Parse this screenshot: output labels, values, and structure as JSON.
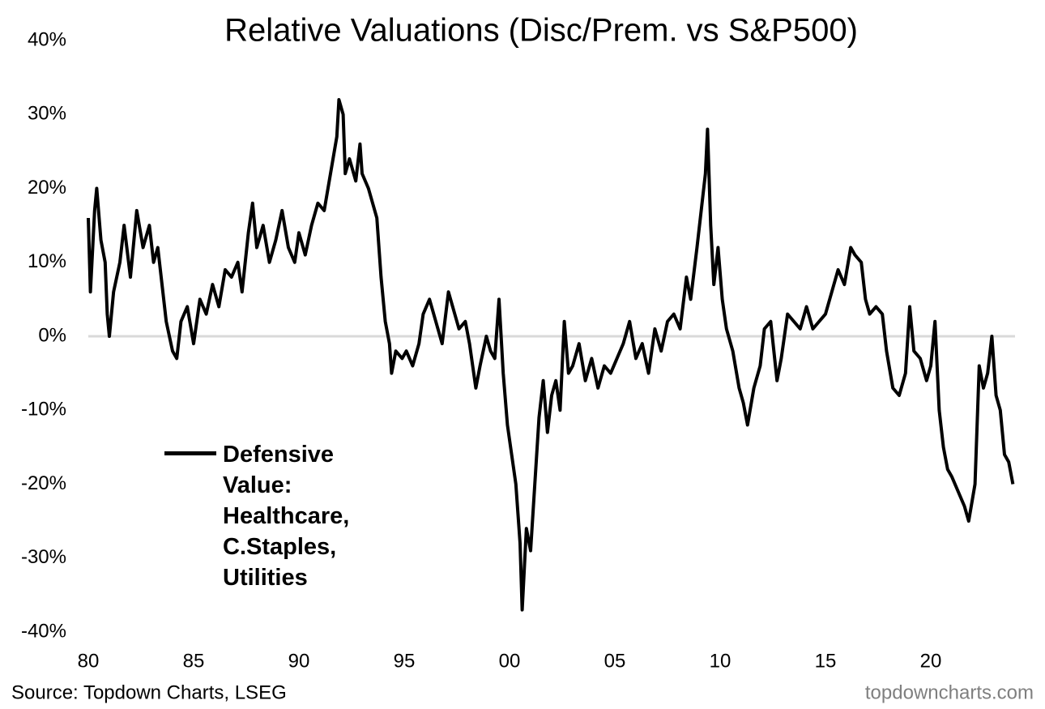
{
  "chart_data": {
    "type": "line",
    "title": "Relative Valuations (Disc/Prem. vs S&P500)",
    "source": "Source: Topdown Charts, LSEG",
    "watermark": "topdowncharts.com",
    "legend_position": "lower-left",
    "xlim": [
      1980,
      2024
    ],
    "xticks": [
      {
        "value": 1980,
        "label": "80"
      },
      {
        "value": 1985,
        "label": "85"
      },
      {
        "value": 1990,
        "label": "90"
      },
      {
        "value": 1995,
        "label": "95"
      },
      {
        "value": 2000,
        "label": "00"
      },
      {
        "value": 2005,
        "label": "05"
      },
      {
        "value": 2010,
        "label": "10"
      },
      {
        "value": 2015,
        "label": "15"
      },
      {
        "value": 2020,
        "label": "20"
      }
    ],
    "ylim": [
      -40,
      40
    ],
    "yticks": [
      {
        "value": -40,
        "label": "-40%"
      },
      {
        "value": -30,
        "label": "-30%"
      },
      {
        "value": -20,
        "label": "-20%"
      },
      {
        "value": -10,
        "label": "-10%"
      },
      {
        "value": 0,
        "label": "0%"
      },
      {
        "value": 10,
        "label": "10%"
      },
      {
        "value": 20,
        "label": "20%"
      },
      {
        "value": 30,
        "label": "30%"
      },
      {
        "value": 40,
        "label": "40%"
      }
    ],
    "x": [
      1980.0,
      1980.1,
      1980.3,
      1980.4,
      1980.6,
      1980.8,
      1980.9,
      1981.0,
      1981.2,
      1981.5,
      1981.7,
      1982.0,
      1982.3,
      1982.6,
      1982.9,
      1983.1,
      1983.3,
      1983.5,
      1983.7,
      1984.0,
      1984.2,
      1984.4,
      1984.7,
      1985.0,
      1985.3,
      1985.6,
      1985.9,
      1986.2,
      1986.5,
      1986.8,
      1987.1,
      1987.3,
      1987.6,
      1987.8,
      1988.0,
      1988.3,
      1988.6,
      1988.9,
      1989.2,
      1989.5,
      1989.8,
      1990.0,
      1990.3,
      1990.6,
      1990.9,
      1991.2,
      1991.5,
      1991.8,
      1991.9,
      1992.1,
      1992.2,
      1992.4,
      1992.7,
      1992.9,
      1993.0,
      1993.3,
      1993.5,
      1993.7,
      1993.9,
      1994.1,
      1994.3,
      1994.4,
      1994.6,
      1994.9,
      1995.1,
      1995.4,
      1995.7,
      1995.9,
      1996.2,
      1996.5,
      1996.8,
      1997.1,
      1997.4,
      1997.6,
      1997.9,
      1998.1,
      1998.4,
      1998.6,
      1998.9,
      1999.1,
      1999.3,
      1999.5,
      1999.7,
      1999.9,
      2000.1,
      2000.3,
      2000.5,
      2000.6,
      2000.8,
      2001.0,
      2001.2,
      2001.4,
      2001.6,
      2001.8,
      2002.0,
      2002.2,
      2002.4,
      2002.6,
      2002.8,
      2003.0,
      2003.3,
      2003.6,
      2003.9,
      2004.2,
      2004.5,
      2004.8,
      2005.1,
      2005.4,
      2005.7,
      2006.0,
      2006.3,
      2006.6,
      2006.9,
      2007.2,
      2007.5,
      2007.8,
      2008.1,
      2008.4,
      2008.6,
      2008.9,
      2009.1,
      2009.3,
      2009.4,
      2009.55,
      2009.7,
      2009.9,
      2010.1,
      2010.3,
      2010.6,
      2010.9,
      2011.1,
      2011.3,
      2011.6,
      2011.9,
      2012.1,
      2012.4,
      2012.7,
      2012.9,
      2013.2,
      2013.5,
      2013.8,
      2014.1,
      2014.4,
      2014.7,
      2015.0,
      2015.3,
      2015.6,
      2015.9,
      2016.2,
      2016.4,
      2016.7,
      2016.9,
      2017.1,
      2017.4,
      2017.7,
      2017.9,
      2018.2,
      2018.5,
      2018.8,
      2019.0,
      2019.2,
      2019.5,
      2019.8,
      2020.0,
      2020.2,
      2020.4,
      2020.6,
      2020.8,
      2021.0,
      2021.3,
      2021.6,
      2021.8,
      2022.1,
      2022.3,
      2022.5,
      2022.7,
      2022.9,
      2023.1,
      2023.3,
      2023.5,
      2023.7,
      2023.9
    ],
    "series": [
      {
        "name": "Defensive Value: Healthcare, C.Staples, Utilities",
        "color": "#000000",
        "values": [
          16,
          6,
          17,
          20,
          13,
          10,
          3,
          0,
          6,
          10,
          15,
          8,
          17,
          12,
          15,
          10,
          12,
          7,
          2,
          -2,
          -3,
          2,
          4,
          -1,
          5,
          3,
          7,
          4,
          9,
          8,
          10,
          6,
          14,
          18,
          12,
          15,
          10,
          13,
          17,
          12,
          10,
          14,
          11,
          15,
          18,
          17,
          22,
          27,
          32,
          30,
          22,
          24,
          21,
          26,
          22,
          20,
          18,
          16,
          8,
          2,
          -1,
          -5,
          -2,
          -3,
          -2,
          -4,
          -1,
          3,
          5,
          2,
          -1,
          6,
          3,
          1,
          2,
          -1,
          -7,
          -4,
          0,
          -2,
          -3,
          5,
          -5,
          -12,
          -16,
          -20,
          -28,
          -37,
          -26,
          -29,
          -20,
          -11,
          -6,
          -13,
          -8,
          -6,
          -10,
          2,
          -5,
          -4,
          -1,
          -6,
          -3,
          -7,
          -4,
          -5,
          -3,
          -1,
          2,
          -3,
          -1,
          -5,
          1,
          -2,
          2,
          3,
          1,
          8,
          5,
          12,
          17,
          22,
          28,
          15,
          7,
          12,
          5,
          1,
          -2,
          -7,
          -9,
          -12,
          -7,
          -4,
          1,
          2,
          -6,
          -3,
          3,
          2,
          1,
          4,
          1,
          2,
          3,
          6,
          9,
          7,
          12,
          11,
          10,
          5,
          3,
          4,
          3,
          -2,
          -7,
          -8,
          -5,
          4,
          -2,
          -3,
          -6,
          -4,
          2,
          -10,
          -15,
          -18,
          -19,
          -21,
          -23,
          -25,
          -20,
          -4,
          -7,
          -5,
          0,
          -8,
          -10,
          -16,
          -17,
          -20
        ]
      }
    ]
  }
}
